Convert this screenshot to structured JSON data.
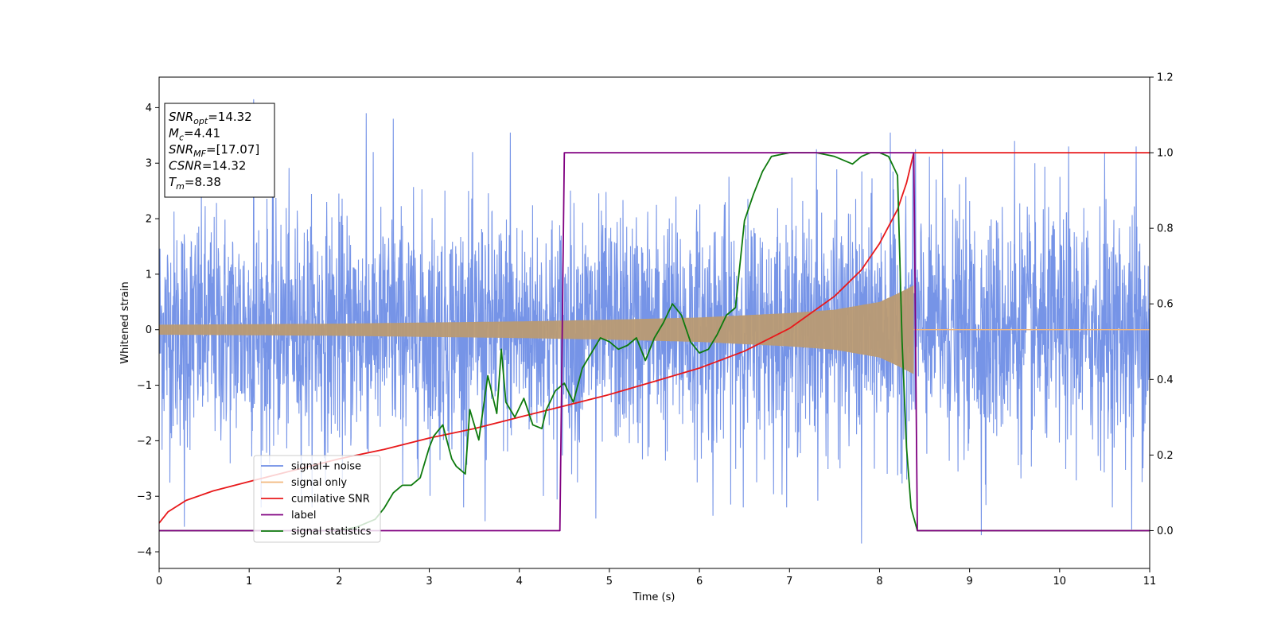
{
  "chart_data": {
    "type": "line",
    "xlabel": "Time (s)",
    "ylabel": "Whitened strain",
    "xlim": [
      0,
      11
    ],
    "ylim": [
      -4.3,
      4.55
    ],
    "y2lim": [
      -0.1,
      1.2
    ],
    "x_ticks": [
      0,
      1,
      2,
      3,
      4,
      5,
      6,
      7,
      8,
      9,
      10,
      11
    ],
    "y_ticks": [
      -4,
      -3,
      -2,
      -1,
      0,
      1,
      2,
      3,
      4
    ],
    "y2_ticks": [
      0.0,
      0.2,
      0.4,
      0.6,
      0.8,
      1.0,
      1.2
    ],
    "grid": false,
    "legend_position": "lower-left",
    "info_box": {
      "position": "top-left",
      "entries": [
        {
          "main": "SNR",
          "sub": "opt",
          "value": "=14.32"
        },
        {
          "main": "M",
          "sub": "c",
          "value": "=4.41"
        },
        {
          "main": "SNR",
          "sub": "MF",
          "value": "=[17.07]"
        },
        {
          "main": "CSNR",
          "sub": "",
          "value": "=14.32"
        },
        {
          "main": "T",
          "sub": "m",
          "value": "=8.38"
        }
      ]
    },
    "series": [
      {
        "name": "signal+ noise",
        "color": "#6f8ee6",
        "axis": "left",
        "description_stats": {
          "x_range": [
            0,
            11
          ],
          "typical_amplitude": 1.6,
          "max_peak": 4.15,
          "min_peak": -3.85
        },
        "peaks": [
          [
            0.28,
            -3.55
          ],
          [
            1.05,
            4.15
          ],
          [
            2.3,
            3.9
          ],
          [
            2.6,
            3.8
          ],
          [
            3.9,
            3.55
          ],
          [
            3.62,
            -3.45
          ],
          [
            4.85,
            -3.4
          ],
          [
            6.15,
            -3.35
          ],
          [
            7.3,
            3.25
          ],
          [
            7.8,
            -3.85
          ],
          [
            8.12,
            3.55
          ],
          [
            8.4,
            3.25
          ],
          [
            8.7,
            3.25
          ],
          [
            9.13,
            -3.7
          ],
          [
            9.5,
            3.4
          ],
          [
            10.1,
            3.3
          ],
          [
            10.5,
            3.2
          ],
          [
            10.85,
            3.3
          ],
          [
            10.8,
            -3.6
          ]
        ]
      },
      {
        "name": "signal only",
        "color": "#f2b77d",
        "axis": "left",
        "envelope": {
          "x": [
            0,
            1,
            2,
            3,
            4,
            5,
            6,
            7,
            7.5,
            8,
            8.2,
            8.38
          ],
          "amp": [
            0.09,
            0.1,
            0.11,
            0.13,
            0.15,
            0.18,
            0.22,
            0.3,
            0.36,
            0.5,
            0.65,
            0.8
          ]
        }
      },
      {
        "name": "cumilative SNR",
        "color": "#e8191b",
        "axis": "right",
        "x": [
          0,
          0.1,
          0.3,
          0.6,
          1.0,
          1.5,
          2.0,
          2.5,
          3.0,
          3.5,
          4.0,
          4.5,
          5.0,
          5.5,
          6.0,
          6.5,
          7.0,
          7.5,
          7.8,
          8.0,
          8.2,
          8.3,
          8.38,
          11
        ],
        "y": [
          0.02,
          0.05,
          0.08,
          0.105,
          0.13,
          0.16,
          0.19,
          0.215,
          0.245,
          0.27,
          0.3,
          0.33,
          0.36,
          0.395,
          0.43,
          0.475,
          0.535,
          0.62,
          0.69,
          0.76,
          0.85,
          0.92,
          1.0,
          1.0
        ]
      },
      {
        "name": "label",
        "color": "#800080",
        "axis": "right",
        "x": [
          0,
          4.45,
          4.5,
          8.38,
          8.42,
          11
        ],
        "y": [
          0.0,
          0.0,
          1.0,
          1.0,
          0.0,
          0.0
        ]
      },
      {
        "name": "signal statistics",
        "color": "#0e7a0e",
        "axis": "right",
        "x": [
          0,
          1.0,
          2.0,
          2.2,
          2.4,
          2.5,
          2.6,
          2.7,
          2.8,
          2.9,
          3.0,
          3.05,
          3.15,
          3.25,
          3.3,
          3.4,
          3.45,
          3.55,
          3.65,
          3.75,
          3.8,
          3.85,
          3.95,
          4.05,
          4.15,
          4.25,
          4.3,
          4.4,
          4.5,
          4.6,
          4.7,
          4.8,
          4.9,
          5.0,
          5.1,
          5.2,
          5.3,
          5.4,
          5.5,
          5.6,
          5.7,
          5.8,
          5.9,
          6.0,
          6.1,
          6.2,
          6.3,
          6.4,
          6.5,
          6.6,
          6.7,
          6.8,
          7.0,
          7.3,
          7.5,
          7.7,
          7.8,
          7.9,
          8.0,
          8.1,
          8.2,
          8.25,
          8.3,
          8.35,
          8.42,
          11
        ],
        "y": [
          0.0,
          0.0,
          0.0,
          0.01,
          0.03,
          0.06,
          0.1,
          0.12,
          0.12,
          0.14,
          0.22,
          0.25,
          0.28,
          0.19,
          0.17,
          0.15,
          0.32,
          0.24,
          0.41,
          0.31,
          0.48,
          0.34,
          0.3,
          0.35,
          0.28,
          0.27,
          0.32,
          0.37,
          0.39,
          0.34,
          0.43,
          0.47,
          0.51,
          0.5,
          0.48,
          0.49,
          0.51,
          0.45,
          0.51,
          0.55,
          0.6,
          0.57,
          0.5,
          0.47,
          0.48,
          0.52,
          0.57,
          0.59,
          0.82,
          0.89,
          0.95,
          0.99,
          1.0,
          1.0,
          0.99,
          0.97,
          0.99,
          1.0,
          1.0,
          0.99,
          0.94,
          0.5,
          0.22,
          0.06,
          0.0,
          0.0
        ]
      }
    ]
  }
}
